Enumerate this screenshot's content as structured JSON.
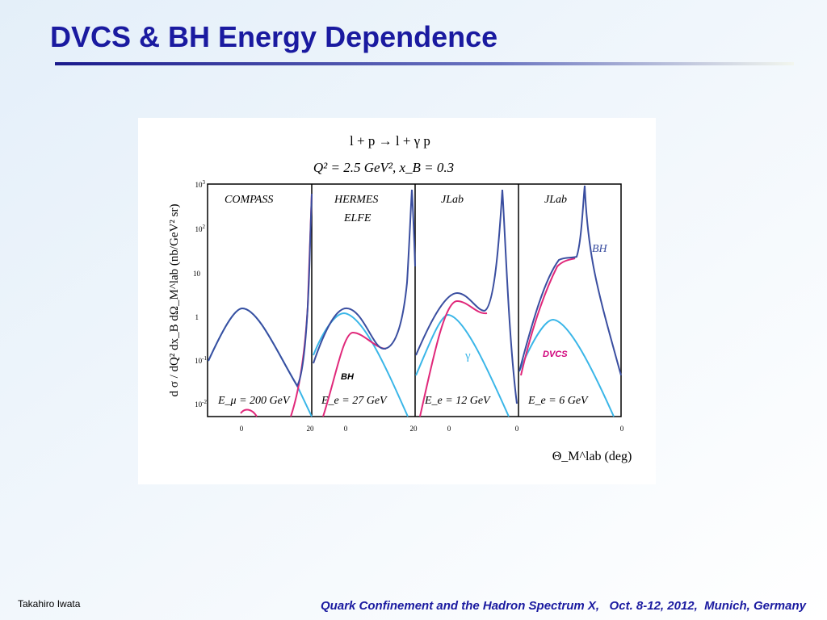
{
  "header": {
    "title": "DVCS & BH Energy Dependence"
  },
  "figure": {
    "reaction": "l + p → l + γ p",
    "kinematics": "Q² = 2.5 GeV², x_B = 0.3",
    "y_axis_label": "d σ / dQ² dx_B dΩ_M^lab (nb/GeV² sr)",
    "x_axis_label": "Θ_M^lab (deg)",
    "y_ticks": [
      {
        "base": "10",
        "exp": "3"
      },
      {
        "base": "10",
        "exp": "2"
      },
      {
        "base": "10",
        "exp": ""
      },
      {
        "base": "1",
        "exp": ""
      },
      {
        "base": "10",
        "exp": "-1"
      },
      {
        "base": "10",
        "exp": "-2"
      }
    ],
    "x_ticks": [
      "0",
      "20",
      "0",
      "20",
      "0",
      "0",
      "0"
    ],
    "panels": [
      {
        "experiment": "COMPASS",
        "beam": "E_μ = 200 GeV"
      },
      {
        "experiment": "HERMES",
        "experiment2": "ELFE",
        "beam": "E_e = 27 GeV"
      },
      {
        "experiment": "JLab",
        "beam": "E_e = 12 GeV"
      },
      {
        "experiment": "JLab",
        "beam": "E_e = 6 GeV"
      }
    ],
    "annotations": {
      "bh_blue": "BH",
      "dvcs": "DVCS",
      "gamma": "γ",
      "bh_black": "BH"
    }
  },
  "footer": {
    "author": "Takahiro Iwata",
    "conference": "Quark Confinement and the Hadron Spectrum X,   Oct. 8-12, 2012,  Munich, Germany"
  }
}
